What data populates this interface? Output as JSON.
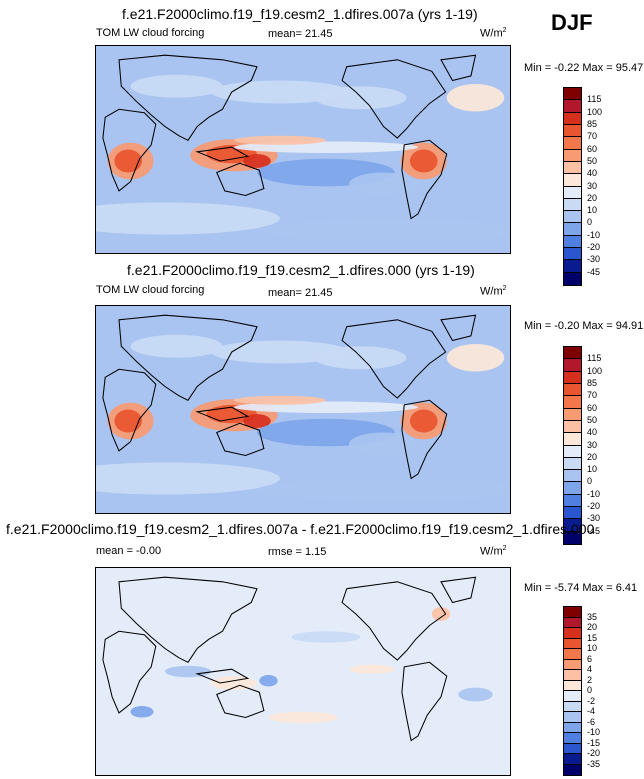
{
  "season": "DJF",
  "panels": [
    {
      "title": "f.e21.F2000climo.f19_f19.cesm2_1.dfires.007a (yrs 1-19)",
      "left_label": "TOM LW cloud forcing",
      "stat_label": "mean=",
      "stat_value": "21.45",
      "units": "W/m",
      "units_exp": "2",
      "minmax": "Min = -0.22 Max = 95.47",
      "colorbar_levels": [
        "115",
        "100",
        "85",
        "70",
        "60",
        "50",
        "40",
        "30",
        "20",
        "10",
        "0",
        "-10",
        "-20",
        "-30",
        "-45"
      ]
    },
    {
      "title": "f.e21.F2000climo.f19_f19.cesm2_1.dfires.000 (yrs 1-19)",
      "left_label": "TOM LW cloud forcing",
      "stat_label": "mean=",
      "stat_value": "21.45",
      "units": "W/m",
      "units_exp": "2",
      "minmax": "Min = -0.20 Max = 94.91",
      "colorbar_levels": [
        "115",
        "100",
        "85",
        "70",
        "60",
        "50",
        "40",
        "30",
        "20",
        "10",
        "0",
        "-10",
        "-20",
        "-30",
        "-45"
      ]
    },
    {
      "title": "f.e21.F2000climo.f19_f19.cesm2_1.dfires.007a - f.e21.F2000climo.f19_f19.cesm2_1.dfires.000",
      "left_label": "mean = -0.00",
      "stat_label": "rmse =",
      "stat_value": "1.15",
      "units": "W/m",
      "units_exp": "2",
      "minmax": "Min = -5.74 Max = 6.41",
      "colorbar_levels": [
        "35",
        "20",
        "15",
        "10",
        "6",
        "4",
        "2",
        "0",
        "-2",
        "-4",
        "-6",
        "-10",
        "-15",
        "-20",
        "-35"
      ]
    }
  ],
  "colors": {
    "abs_scale": [
      "#7f0000",
      "#b2182b",
      "#d6301d",
      "#e8552f",
      "#f4764b",
      "#f89a72",
      "#fcc1a5",
      "#fde7d9",
      "#e4ecf9",
      "#c9daf5",
      "#a9c4f0",
      "#7ea5ea",
      "#4f7fe0",
      "#2a56cf",
      "#0a1b8f",
      "#00006b"
    ],
    "diff_scale": [
      "#7f0000",
      "#b2182b",
      "#d6301d",
      "#e8552f",
      "#f4764b",
      "#f89a72",
      "#fcc1a5",
      "#fde7d9",
      "#e4ecf9",
      "#c9daf5",
      "#a9c4f0",
      "#7ea5ea",
      "#4f7fe0",
      "#2a56cf",
      "#0a1b8f",
      "#00006b"
    ]
  },
  "chart_data": [
    {
      "type": "heatmap",
      "title": "f.e21.F2000climo.f19_f19.cesm2_1.dfires.007a (yrs 1-19)",
      "subtitle": "TOM LW cloud forcing",
      "mean": 21.45,
      "min": -0.22,
      "max": 95.47,
      "units": "W/m2",
      "levels": [
        -45,
        -30,
        -20,
        -10,
        0,
        10,
        20,
        30,
        40,
        50,
        60,
        70,
        85,
        100,
        115
      ],
      "grid": false
    },
    {
      "type": "heatmap",
      "title": "f.e21.F2000climo.f19_f19.cesm2_1.dfires.000 (yrs 1-19)",
      "subtitle": "TOM LW cloud forcing",
      "mean": 21.45,
      "min": -0.2,
      "max": 94.91,
      "units": "W/m2",
      "levels": [
        -45,
        -30,
        -20,
        -10,
        0,
        10,
        20,
        30,
        40,
        50,
        60,
        70,
        85,
        100,
        115
      ],
      "grid": false
    },
    {
      "type": "heatmap",
      "title": "f.e21.F2000climo.f19_f19.cesm2_1.dfires.007a - f.e21.F2000climo.f19_f19.cesm2_1.dfires.000",
      "mean": -0.0,
      "rmse": 1.15,
      "min": -5.74,
      "max": 6.41,
      "units": "W/m2",
      "levels": [
        -35,
        -20,
        -15,
        -10,
        -6,
        -4,
        -2,
        0,
        2,
        4,
        6,
        10,
        15,
        20,
        35
      ],
      "grid": false
    }
  ]
}
